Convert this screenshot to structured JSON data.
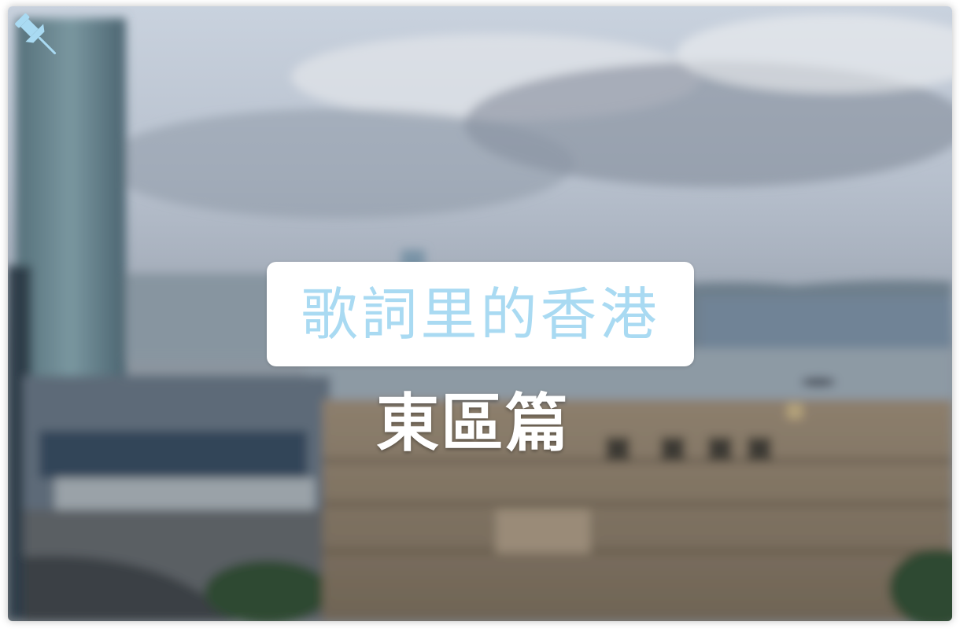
{
  "title": "歌詞里的香港",
  "subtitle": "東區篇",
  "colors": {
    "title_text": "#a9daf2",
    "title_card_bg": "#ffffff",
    "subtitle_text": "#ffffff",
    "pin": "#a9daf2"
  },
  "icons": {
    "pin": "pushpin-icon"
  },
  "background": "blurred-harbour-cityscape-photo"
}
